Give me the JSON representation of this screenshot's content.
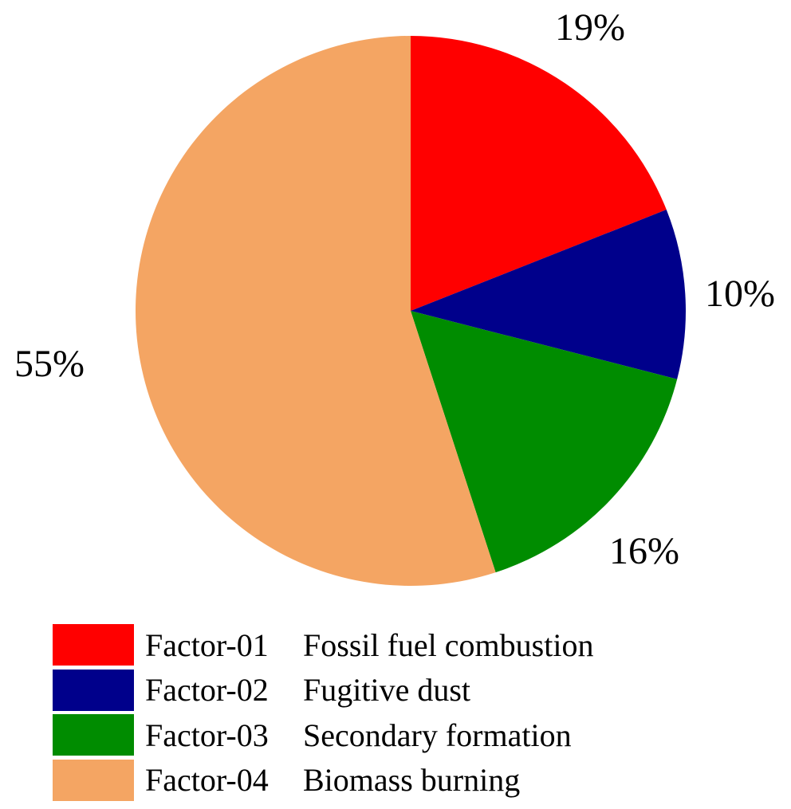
{
  "chart_data": {
    "type": "pie",
    "start_angle": "12 o'clock",
    "direction": "clockwise",
    "slices": [
      {
        "code": "Factor-01",
        "name": "Fossil fuel combustion",
        "value": 19,
        "label": "19%",
        "color": "#FF0000"
      },
      {
        "code": "Factor-02",
        "name": "Fugitive dust",
        "value": 10,
        "label": "10%",
        "color": "#00008B"
      },
      {
        "code": "Factor-03",
        "name": "Secondary formation",
        "value": 16,
        "label": "16%",
        "color": "#008C00"
      },
      {
        "code": "Factor-04",
        "name": "Biomass burning",
        "value": 55,
        "label": "55%",
        "color": "#F4A563"
      }
    ],
    "legend_position": "bottom-left"
  }
}
